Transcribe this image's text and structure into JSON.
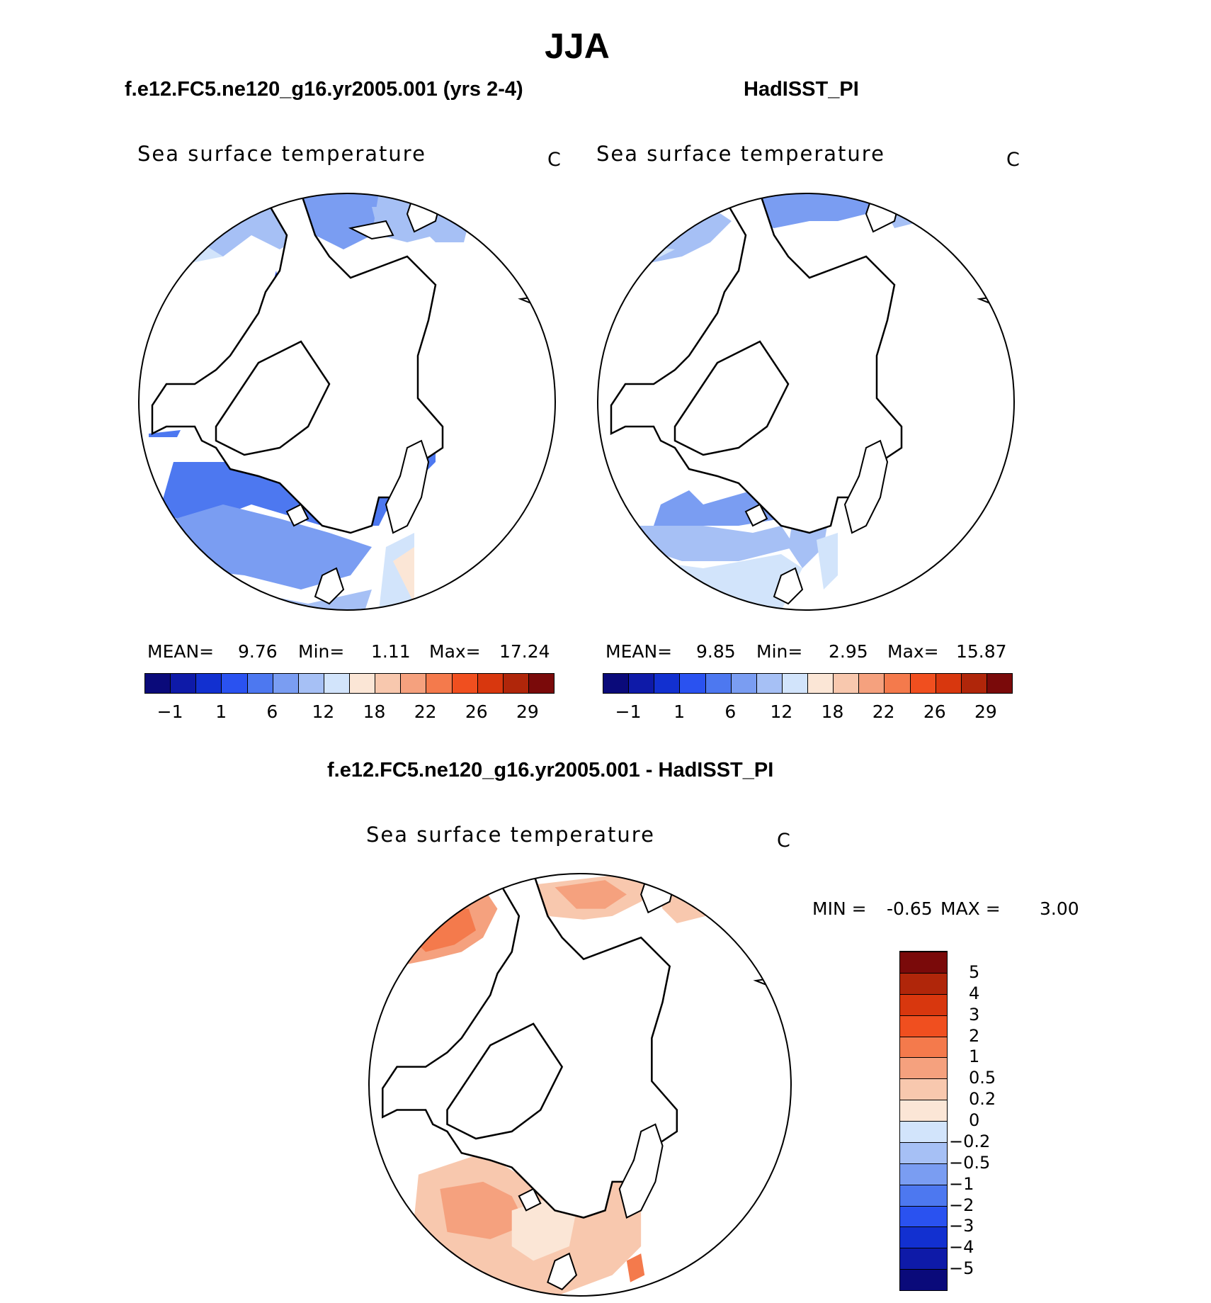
{
  "header": {
    "title": "JJA"
  },
  "panel_left": {
    "title": "f.e12.FC5.ne120_g16.yr2005.001 (yrs 2-4)",
    "variable": "Sea surface temperature",
    "units": "C",
    "mean_label": "MEAN=",
    "mean_value": "9.76",
    "min_label": "Min=",
    "min_value": "1.11",
    "max_label": "Max=",
    "max_value": "17.24"
  },
  "panel_right": {
    "title": "HadISST_PI",
    "variable": "Sea surface temperature",
    "units": "C",
    "mean_label": "MEAN=",
    "mean_value": "9.85",
    "min_label": "Min=",
    "min_value": "2.95",
    "max_label": "Max=",
    "max_value": "15.87"
  },
  "panel_diff": {
    "title": "f.e12.FC5.ne120_g16.yr2005.001 - HadISST_PI",
    "variable": "Sea surface temperature",
    "units": "C",
    "min_label": "MIN =",
    "min_value": "-0.65",
    "max_label": "MAX =",
    "max_value": "3.00"
  },
  "colorbar_abs": {
    "ticks": [
      "-1",
      "1",
      "6",
      "12",
      "18",
      "22",
      "26",
      "29"
    ],
    "colors": [
      "#0a0a7a",
      "#0e1aa8",
      "#1230d0",
      "#2a52f0",
      "#4d78f0",
      "#7a9df2",
      "#a6c0f5",
      "#d2e4fb",
      "#fbe6d6",
      "#f8c8ae",
      "#f5a17e",
      "#f47a4c",
      "#f04f1f",
      "#d8370e",
      "#b0260a",
      "#7a0a0a"
    ]
  },
  "colorbar_diff": {
    "ticks": [
      "-5",
      "-4",
      "-3",
      "-2",
      "-1",
      "-0.5",
      "-0.2",
      "0",
      "0.2",
      "0.5",
      "1",
      "2",
      "3",
      "4",
      "5"
    ],
    "colors": [
      "#0a0a7a",
      "#0e1aa8",
      "#1230d0",
      "#2a52f0",
      "#4d78f0",
      "#7a9df2",
      "#a6c0f5",
      "#d2e4fb",
      "#fbe6d6",
      "#f8c8ae",
      "#f5a17e",
      "#f47a4c",
      "#f04f1f",
      "#d8370e",
      "#b0260a",
      "#7a0a0a"
    ]
  }
}
